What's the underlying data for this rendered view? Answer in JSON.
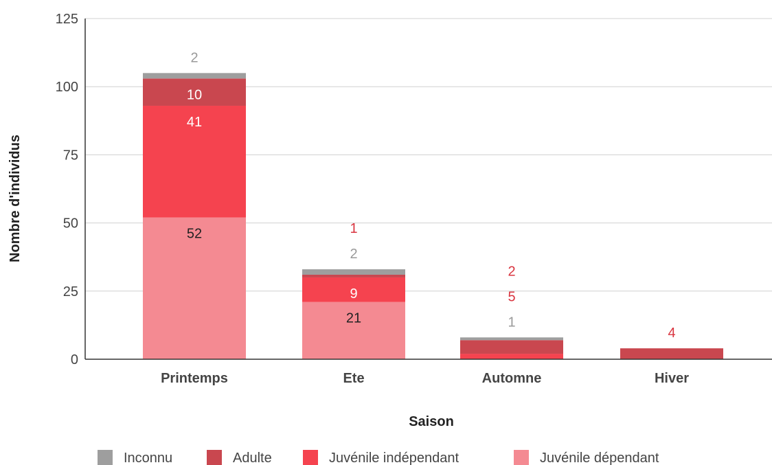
{
  "chart_data": {
    "type": "bar",
    "stacked": true,
    "categories": [
      "Printemps",
      "Ete",
      "Automne",
      "Hiver"
    ],
    "series": [
      {
        "name": "Juvénile dépendant",
        "color": "#f48a92",
        "values": [
          52,
          21,
          0,
          0
        ],
        "labels": [
          "52",
          "21",
          "",
          ""
        ],
        "label_color": "#222222"
      },
      {
        "name": "Juvénile indépendant",
        "color": "#f5434f",
        "values": [
          41,
          9,
          2,
          0
        ],
        "labels": [
          "41",
          "9",
          "2",
          ""
        ],
        "label_color": "#ffffff"
      },
      {
        "name": "Adulte",
        "color": "#c9474f",
        "values": [
          10,
          1,
          5,
          4
        ],
        "labels": [
          "10",
          "1",
          "5",
          "4"
        ],
        "label_color": "#ffffff"
      },
      {
        "name": "Inconnu",
        "color": "#9e9e9e",
        "values": [
          2,
          2,
          1,
          0
        ],
        "labels": [
          "2",
          "2",
          "1",
          ""
        ],
        "label_color": "#999999"
      }
    ],
    "outside_label_colors": {
      "Juvénile indépendant": "#d9343f",
      "Adulte": "#d9343f",
      "Inconnu": "#999999"
    },
    "xlabel": "Saison",
    "ylabel": "Nombre d'individus",
    "ylim": [
      0,
      125
    ],
    "yticks": [
      0,
      25,
      50,
      75,
      100,
      125
    ],
    "grid": true,
    "legend_position": "bottom",
    "legend_order": [
      "Inconnu",
      "Adulte",
      "Juvénile indépendant",
      "Juvénile dépendant"
    ]
  }
}
